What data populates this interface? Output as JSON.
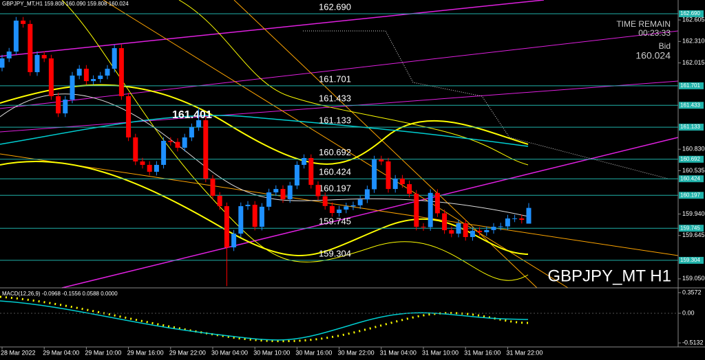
{
  "chart_data": {
    "type": "candlestick",
    "title": "GBPJPY_MT H1",
    "header": "GBPJPY_MT,H1  159.808 160.090 159.808 160.024",
    "time_remain_label": "TIME REMAIN",
    "time_remain": "00:23:33",
    "bid_label": "Bid",
    "bid": 160.024,
    "annotation": "161.401",
    "up_color": "#1e90ff",
    "down_color": "#ff0000",
    "level_color": "#20b2aa",
    "ylim": [
      158.926,
      162.879
    ],
    "yticks": [
      162.605,
      {
        "value": 162.31,
        "label": "162.310"
      },
      162.015,
      {
        "value": 160.83,
        "label": "160.830"
      },
      160.535,
      {
        "value": 159.94,
        "label": "159.940"
      },
      159.645,
      {
        "value": 159.05,
        "label": "159.050"
      }
    ],
    "levels": [
      {
        "value": 162.69,
        "label": "162.690"
      },
      161.701,
      161.433,
      161.133,
      160.692,
      160.424,
      160.197,
      159.745,
      159.304
    ],
    "categories": [
      "28 Mar 2022",
      null,
      null,
      null,
      null,
      null,
      "29 Mar 04:00",
      null,
      null,
      null,
      null,
      null,
      "29 Mar 10:00",
      null,
      null,
      null,
      null,
      null,
      "29 Mar 16:00",
      null,
      null,
      null,
      null,
      null,
      "29 Mar 22:00",
      null,
      null,
      null,
      null,
      null,
      "30 Mar 04:00",
      null,
      null,
      null,
      null,
      null,
      "30 Mar 10:00",
      null,
      null,
      null,
      null,
      null,
      "30 Mar 16:00",
      null,
      null,
      null,
      null,
      null,
      "30 Mar 22:00",
      null,
      null,
      null,
      null,
      null,
      "31 Mar 04:00",
      null,
      null,
      null,
      null,
      null,
      "31 Mar 10:00",
      null,
      null,
      null,
      null,
      null,
      "31 Mar 16:00",
      null,
      null,
      null,
      null,
      null,
      "31 Mar 22:00",
      null,
      null,
      null
    ],
    "open": [
      161.95,
      162.077,
      162.171,
      162.596,
      162.55,
      161.888,
      162.124,
      162.077,
      161.558,
      161.322,
      161.511,
      161.841,
      161.935,
      161.765,
      161.794,
      161.841,
      161.935,
      162.218,
      161.558,
      160.992,
      160.662,
      160.615,
      160.52,
      160.615,
      160.945,
      160.93,
      160.85,
      160.992,
      161.133,
      161.228,
      160.426,
      160.19,
      160.048,
      159.482,
      159.671,
      160.048,
      160.067,
      159.765,
      160.04,
      160.237,
      160.284,
      160.143,
      160.332,
      160.615,
      160.709,
      160.34,
      160.185,
      160.05,
      159.954,
      160.001,
      160.045,
      160.06,
      160.14,
      160.28,
      160.69,
      160.662,
      160.284,
      160.426,
      160.35,
      160.218,
      159.765,
      159.76,
      160.23,
      159.95,
      159.718,
      159.671,
      159.813,
      159.624,
      159.71,
      159.69,
      159.72,
      159.765,
      159.77,
      159.879,
      159.88,
      159.808
    ],
    "high": [
      162.127,
      162.221,
      162.646,
      162.646,
      162.6,
      162.174,
      162.174,
      162.127,
      161.608,
      161.561,
      161.891,
      161.985,
      161.985,
      161.844,
      161.891,
      161.985,
      162.268,
      162.268,
      161.608,
      161.042,
      160.712,
      160.665,
      160.665,
      160.995,
      160.995,
      160.98,
      161.042,
      161.183,
      161.401,
      161.278,
      160.476,
      160.24,
      160.098,
      159.721,
      160.098,
      160.117,
      160.117,
      160.09,
      160.287,
      160.334,
      160.334,
      160.382,
      160.665,
      160.759,
      160.759,
      160.39,
      160.235,
      160.1,
      160.051,
      160.095,
      160.11,
      160.19,
      160.33,
      160.74,
      160.74,
      160.712,
      160.476,
      160.476,
      160.4,
      160.268,
      159.815,
      160.28,
      160.28,
      160.0,
      159.768,
      159.863,
      159.863,
      159.76,
      159.76,
      159.77,
      159.815,
      159.82,
      159.929,
      159.93,
      159.93,
      160.09
    ],
    "low": [
      161.9,
      162.027,
      162.121,
      162.5,
      161.838,
      161.838,
      162.027,
      161.508,
      161.272,
      161.272,
      161.461,
      161.791,
      161.715,
      161.715,
      161.744,
      161.791,
      161.885,
      161.508,
      160.942,
      160.612,
      160.565,
      160.47,
      160.47,
      160.565,
      160.88,
      160.8,
      160.8,
      160.942,
      161.083,
      160.376,
      160.14,
      159.998,
      158.95,
      159.432,
      159.621,
      159.998,
      159.715,
      159.715,
      159.99,
      160.187,
      160.093,
      160.093,
      160.282,
      160.565,
      160.29,
      160.135,
      160.0,
      159.904,
      159.904,
      159.951,
      159.995,
      160.01,
      160.09,
      160.23,
      160.612,
      160.234,
      160.234,
      160.3,
      160.168,
      159.715,
      159.71,
      159.71,
      159.9,
      159.668,
      159.621,
      159.621,
      159.574,
      159.574,
      159.64,
      159.64,
      159.67,
      159.715,
      159.72,
      159.829,
      159.81,
      159.808
    ],
    "close": [
      162.077,
      162.171,
      162.596,
      162.55,
      161.888,
      162.124,
      162.077,
      161.558,
      161.322,
      161.511,
      161.841,
      161.935,
      161.765,
      161.794,
      161.841,
      161.935,
      162.218,
      161.558,
      160.992,
      160.662,
      160.615,
      160.52,
      160.615,
      160.945,
      160.93,
      160.85,
      160.992,
      161.133,
      161.228,
      160.426,
      160.19,
      160.048,
      159.482,
      159.671,
      160.048,
      160.067,
      159.765,
      160.04,
      160.237,
      160.284,
      160.143,
      160.332,
      160.615,
      160.709,
      160.34,
      160.185,
      160.05,
      159.954,
      160.001,
      160.045,
      160.06,
      160.14,
      160.28,
      160.69,
      160.662,
      160.284,
      160.426,
      160.35,
      160.218,
      159.765,
      159.76,
      160.23,
      159.95,
      159.718,
      159.671,
      159.813,
      159.624,
      159.71,
      159.69,
      159.72,
      159.765,
      159.77,
      159.879,
      159.88,
      159.86,
      160.024
    ],
    "macd": {
      "title": "MACD(12,26,9) -0.0968 -0.1556 0.0588 0.0000",
      "ylim": [
        -0.583,
        0.44
      ],
      "yticks": [
        0.3572,
        {
          "value": 0,
          "label": "0.00"
        },
        -0.5132
      ]
    }
  }
}
